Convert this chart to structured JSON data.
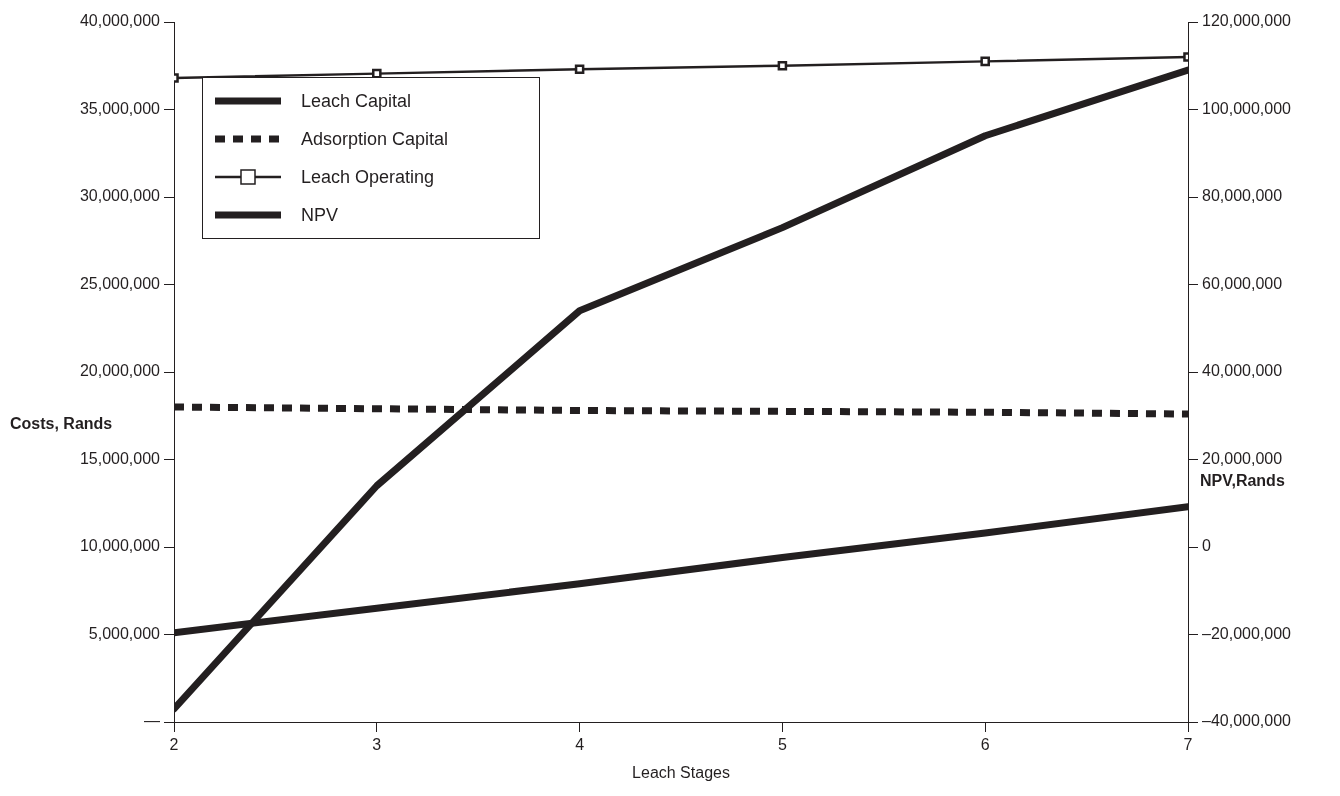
{
  "chart_data": {
    "type": "line",
    "xlabel": "Leach Stages",
    "ylabel": "Costs, Rands",
    "y2label": "NPV,Rands",
    "x": [
      2,
      3,
      4,
      5,
      6,
      7
    ],
    "xlim": [
      2,
      7
    ],
    "xticks": [
      2,
      3,
      4,
      5,
      6,
      7
    ],
    "ylim": [
      0,
      40000000
    ],
    "yticks": [
      {
        "value": 0,
        "label": "—"
      },
      {
        "value": 5000000,
        "label": "5,000,000"
      },
      {
        "value": 10000000,
        "label": "10,000,000"
      },
      {
        "value": 15000000,
        "label": "15,000,000"
      },
      {
        "value": 20000000,
        "label": "20,000,000"
      },
      {
        "value": 25000000,
        "label": "25,000,000"
      },
      {
        "value": 30000000,
        "label": "30,000,000"
      },
      {
        "value": 35000000,
        "label": "35,000,000"
      },
      {
        "value": 40000000,
        "label": "40,000,000"
      }
    ],
    "y2lim": [
      -40000000,
      120000000
    ],
    "y2ticks": [
      {
        "value": -40000000,
        "label": "–40,000,000"
      },
      {
        "value": -20000000,
        "label": "–20,000,000"
      },
      {
        "value": 0,
        "label": "0"
      },
      {
        "value": 20000000,
        "label": "20,000,000"
      },
      {
        "value": 40000000,
        "label": "40,000,000"
      },
      {
        "value": 60000000,
        "label": "60,000,000"
      },
      {
        "value": 80000000,
        "label": "80,000,000"
      },
      {
        "value": 100000000,
        "label": "100,000,000"
      },
      {
        "value": 120000000,
        "label": "120,000,000"
      }
    ],
    "grid": false,
    "legend": "top left",
    "series": [
      {
        "name": "Leach Capital",
        "color": "#231f20",
        "values": [
          5100000,
          6500000,
          7900000,
          9400000,
          10800000,
          12300000
        ],
        "marker": "none",
        "line_style": "solid"
      },
      {
        "name": "Adsorption Capital",
        "color": "#231f20",
        "values": [
          18000000,
          17900000,
          17800000,
          17750000,
          17700000,
          17600000
        ],
        "marker": "none",
        "line_style": "dashed"
      },
      {
        "name": "Leach Operating",
        "color": "#231f20",
        "values": [
          36800000,
          37050000,
          37300000,
          37500000,
          37750000,
          38000000
        ],
        "marker": "square",
        "line_style": "solid"
      },
      {
        "name": "NPV",
        "color": "#231f20",
        "values": [
          -37000000,
          14000000,
          54000000,
          73000000,
          94000000,
          109000000
        ],
        "axis": "y2",
        "marker": "none",
        "line_style": "solid"
      }
    ]
  }
}
